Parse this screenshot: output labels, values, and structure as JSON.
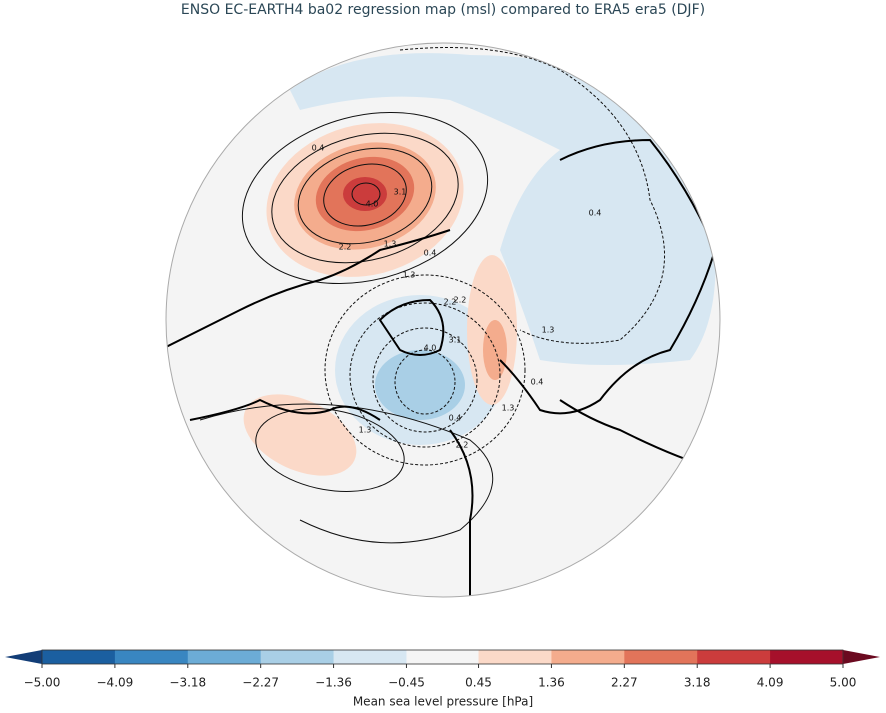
{
  "map": {
    "title": "ENSO EC-EARTH4 ba02 regression map (msl) compared to ERA5 era5 (DJF)",
    "colorbar": {
      "label": "Mean sea level pressure [hPa]",
      "ticks": [
        {
          "value": -5.0,
          "label": "−5.00"
        },
        {
          "value": -4.09,
          "label": "−4.09"
        },
        {
          "value": -3.18,
          "label": "−3.18"
        },
        {
          "value": -2.27,
          "label": "−2.27"
        },
        {
          "value": -1.36,
          "label": "−1.36"
        },
        {
          "value": -0.45,
          "label": "−0.45"
        },
        {
          "value": 0.45,
          "label": "0.45"
        },
        {
          "value": 1.36,
          "label": "1.36"
        },
        {
          "value": 2.27,
          "label": "2.27"
        },
        {
          "value": 3.18,
          "label": "3.18"
        },
        {
          "value": 4.09,
          "label": "4.09"
        },
        {
          "value": 5.0,
          "label": "5.00"
        }
      ],
      "colors": [
        "#1b5fa0",
        "#3986c1",
        "#6cacd6",
        "#a9cfe6",
        "#d7e7f2",
        "#f5f5f5",
        "#fbd9c8",
        "#f4ac8d",
        "#e2745a",
        "#cb3c3c",
        "#a6102b"
      ],
      "under_color": "#123d77",
      "over_color": "#6b0a20"
    },
    "contour_labels": [
      "0.4",
      "4.0",
      "3.1",
      "2.2",
      "1.3",
      "0.4",
      "1.3",
      "2.2",
      "3.1",
      "4.0",
      "0.4",
      "1.3",
      "0.4",
      "1.3",
      "2.2",
      "2.2",
      "1.3",
      "0.4"
    ]
  }
}
